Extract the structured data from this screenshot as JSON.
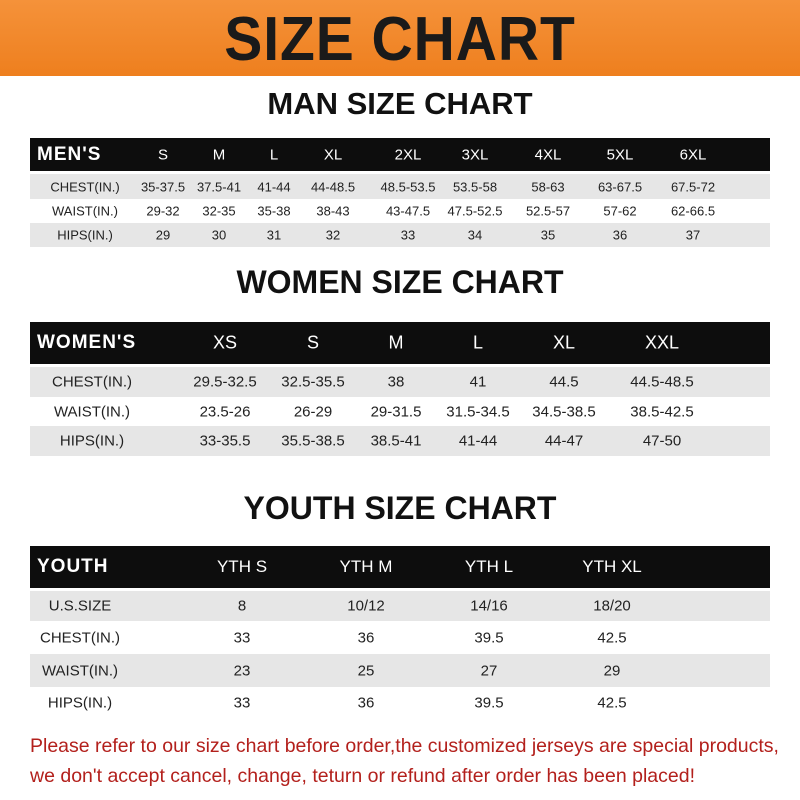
{
  "banner_title": "SIZE CHART",
  "men": {
    "title": "MAN SIZE CHART",
    "header": [
      "MEN'S",
      "S",
      "M",
      "L",
      "XL",
      "2XL",
      "3XL",
      "4XL",
      "5XL",
      "6XL"
    ],
    "rows": [
      [
        "CHEST(IN.)",
        "35-37.5",
        "37.5-41",
        "41-44",
        "44-48.5",
        "48.5-53.5",
        "53.5-58",
        "58-63",
        "63-67.5",
        "67.5-72"
      ],
      [
        "WAIST(IN.)",
        "29-32",
        "32-35",
        "35-38",
        "38-43",
        "43-47.5",
        "47.5-52.5",
        "52.5-57",
        "57-62",
        "62-66.5"
      ],
      [
        "HIPS(IN.)",
        "29",
        "30",
        "31",
        "32",
        "33",
        "34",
        "35",
        "36",
        "37"
      ]
    ]
  },
  "women": {
    "title": "WOMEN SIZE CHART",
    "header": [
      "WOMEN'S",
      "XS",
      "S",
      "M",
      "L",
      "XL",
      "XXL"
    ],
    "rows": [
      [
        "CHEST(IN.)",
        "29.5-32.5",
        "32.5-35.5",
        "38",
        "41",
        "44.5",
        "44.5-48.5"
      ],
      [
        "WAIST(IN.)",
        "23.5-26",
        "26-29",
        "29-31.5",
        "31.5-34.5",
        "34.5-38.5",
        "38.5-42.5"
      ],
      [
        "HIPS(IN.)",
        "33-35.5",
        "35.5-38.5",
        "38.5-41",
        "41-44",
        "44-47",
        "47-50"
      ]
    ]
  },
  "youth": {
    "title": "YOUTH SIZE CHART",
    "header": [
      "YOUTH",
      "YTH S",
      "YTH M",
      "YTH L",
      "YTH XL"
    ],
    "rows": [
      [
        "U.S.SIZE",
        "8",
        "10/12",
        "14/16",
        "18/20"
      ],
      [
        "CHEST(IN.)",
        "33",
        "36",
        "39.5",
        "42.5"
      ],
      [
        "WAIST(IN.)",
        "23",
        "25",
        "27",
        "29"
      ],
      [
        "HIPS(IN.)",
        "33",
        "36",
        "39.5",
        "42.5"
      ]
    ]
  },
  "notice": [
    "Please refer to our size chart before order,the customized jerseys are special products,",
    "we don't accept cancel, change, teturn or refund after order has been placed!"
  ],
  "colors": {
    "banner": "#ef8424",
    "header_row": "#0d0d0d",
    "stripe": "#e6e6e6",
    "notice": "#b3201c"
  }
}
